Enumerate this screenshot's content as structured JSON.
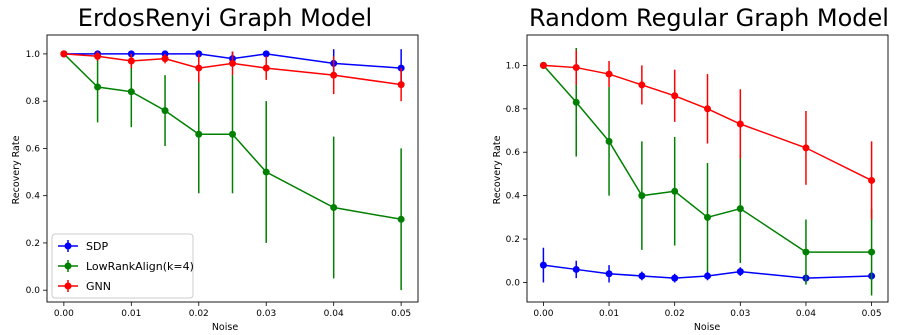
{
  "chart_data": [
    {
      "type": "line",
      "title": "ErdosRenyi Graph Model",
      "xlabel": "Noise",
      "ylabel": "Recovery Rate",
      "xlim": [
        -0.0025,
        0.0525
      ],
      "ylim": [
        -0.05,
        1.08
      ],
      "x_ticks": [
        "0.00",
        "0.01",
        "0.02",
        "0.03",
        "0.04",
        "0.05"
      ],
      "y_ticks": [
        "0.0",
        "0.2",
        "0.4",
        "0.6",
        "0.8",
        "1.0"
      ],
      "x": [
        0.0,
        0.005,
        0.01,
        0.015,
        0.02,
        0.025,
        0.03,
        0.04,
        0.05
      ],
      "legend": "lower-left",
      "grid": false,
      "series": [
        {
          "name": "SDP",
          "color": "#0000ff",
          "values": [
            1.0,
            1.0,
            1.0,
            1.0,
            1.0,
            0.98,
            1.0,
            0.96,
            0.94
          ],
          "errors": [
            0.0,
            0.0,
            0.0,
            0.0,
            0.0,
            0.03,
            0.0,
            0.06,
            0.08
          ]
        },
        {
          "name": "LowRankAlign(k=4)",
          "color": "#008000",
          "values": [
            1.0,
            0.86,
            0.84,
            0.76,
            0.66,
            0.66,
            0.5,
            0.35,
            0.3
          ],
          "errors": [
            0.0,
            0.15,
            0.15,
            0.15,
            0.25,
            0.25,
            0.3,
            0.3,
            0.3
          ]
        },
        {
          "name": "GNN",
          "color": "#ff0000",
          "values": [
            1.0,
            0.99,
            0.97,
            0.98,
            0.94,
            0.96,
            0.94,
            0.91,
            0.87
          ],
          "errors": [
            0.0,
            0.02,
            0.03,
            0.02,
            0.06,
            0.05,
            0.05,
            0.08,
            0.07
          ]
        }
      ]
    },
    {
      "type": "line",
      "title": "Random Regular Graph Model",
      "xlabel": "Noise",
      "ylabel": "Recovery Rate",
      "xlim": [
        -0.0025,
        0.0525
      ],
      "ylim": [
        -0.09,
        1.14
      ],
      "x_ticks": [
        "0.00",
        "0.01",
        "0.02",
        "0.03",
        "0.04",
        "0.05"
      ],
      "y_ticks": [
        "0.0",
        "0.2",
        "0.4",
        "0.6",
        "0.8",
        "1.0"
      ],
      "x": [
        0.0,
        0.005,
        0.01,
        0.015,
        0.02,
        0.025,
        0.03,
        0.04,
        0.05
      ],
      "legend": "none",
      "grid": false,
      "series": [
        {
          "name": "SDP",
          "color": "#0000ff",
          "values": [
            0.08,
            0.06,
            0.04,
            0.03,
            0.02,
            0.03,
            0.05,
            0.02,
            0.03
          ],
          "errors": [
            0.08,
            0.04,
            0.04,
            0.02,
            0.02,
            0.02,
            0.02,
            0.02,
            0.02
          ]
        },
        {
          "name": "LowRankAlign(k=4)",
          "color": "#008000",
          "values": [
            1.0,
            0.83,
            0.65,
            0.4,
            0.42,
            0.3,
            0.34,
            0.14,
            0.14
          ],
          "errors": [
            0.0,
            0.25,
            0.25,
            0.25,
            0.25,
            0.25,
            0.25,
            0.15,
            0.2
          ]
        },
        {
          "name": "GNN",
          "color": "#ff0000",
          "values": [
            1.0,
            0.99,
            0.96,
            0.91,
            0.86,
            0.8,
            0.73,
            0.62,
            0.47
          ],
          "errors": [
            0.0,
            0.08,
            0.06,
            0.09,
            0.12,
            0.16,
            0.16,
            0.17,
            0.18
          ]
        }
      ]
    }
  ]
}
